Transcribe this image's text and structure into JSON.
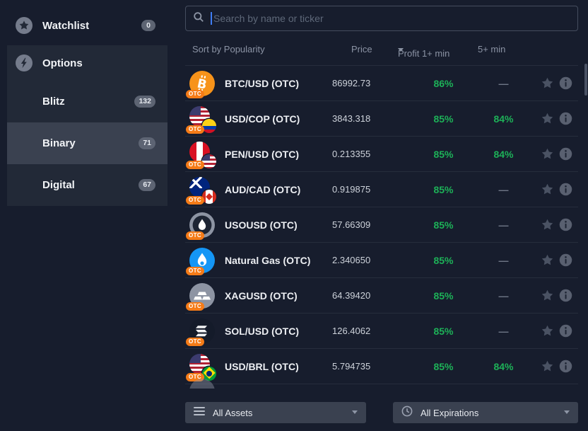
{
  "sidebar": {
    "watchlist": {
      "label": "Watchlist",
      "count": "0"
    },
    "options": {
      "label": "Options",
      "items": [
        {
          "label": "Blitz",
          "count": "132",
          "selected": false
        },
        {
          "label": "Binary",
          "count": "71",
          "selected": true
        },
        {
          "label": "Digital",
          "count": "67",
          "selected": false
        }
      ]
    }
  },
  "search": {
    "placeholder": "Search by name or ticker"
  },
  "table": {
    "headers": {
      "sort": "Sort by Popularity",
      "price": "Price",
      "profit": "Profit 1+ min",
      "fivemin": "5+ min"
    },
    "rows": [
      {
        "name": "BTC/USD (OTC)",
        "icon": "btc",
        "badge": "OTC",
        "price": "86992.73",
        "profit1": "86%",
        "profit5": "—"
      },
      {
        "name": "USD/COP (OTC)",
        "icon": "usd-cop",
        "badge": "OTC",
        "price": "3843.318",
        "profit1": "85%",
        "profit5": "84%"
      },
      {
        "name": "PEN/USD (OTC)",
        "icon": "pen-usd",
        "badge": "OTC",
        "price": "0.213355",
        "profit1": "85%",
        "profit5": "84%"
      },
      {
        "name": "AUD/CAD (OTC)",
        "icon": "aud-cad",
        "badge": "OTC",
        "price": "0.919875",
        "profit1": "85%",
        "profit5": "—"
      },
      {
        "name": "USOUSD (OTC)",
        "icon": "oil",
        "badge": "OTC",
        "price": "57.66309",
        "profit1": "85%",
        "profit5": "—"
      },
      {
        "name": "Natural Gas (OTC)",
        "icon": "natural-gas",
        "badge": "OTC",
        "price": "2.340650",
        "profit1": "85%",
        "profit5": "—"
      },
      {
        "name": "XAGUSD (OTC)",
        "icon": "silver",
        "badge": "OTC",
        "price": "64.39420",
        "profit1": "85%",
        "profit5": "—"
      },
      {
        "name": "SOL/USD (OTC)",
        "icon": "sol",
        "badge": "OTC",
        "price": "126.4062",
        "profit1": "85%",
        "profit5": "—"
      },
      {
        "name": "USD/BRL (OTC)",
        "icon": "usd-brl",
        "badge": "OTC",
        "price": "5.794735",
        "profit1": "85%",
        "profit5": "84%"
      }
    ]
  },
  "filters": {
    "assets": "All Assets",
    "expirations": "All Expirations"
  },
  "colors": {
    "profit_green": "#1db158",
    "otc_badge_orange": "#f57b17",
    "btc_orange": "#f7931a",
    "natural_gas_blue": "#1496f5",
    "panel_dark": "#222937",
    "selected_row": "#3a4150",
    "background": "#171d2d"
  }
}
